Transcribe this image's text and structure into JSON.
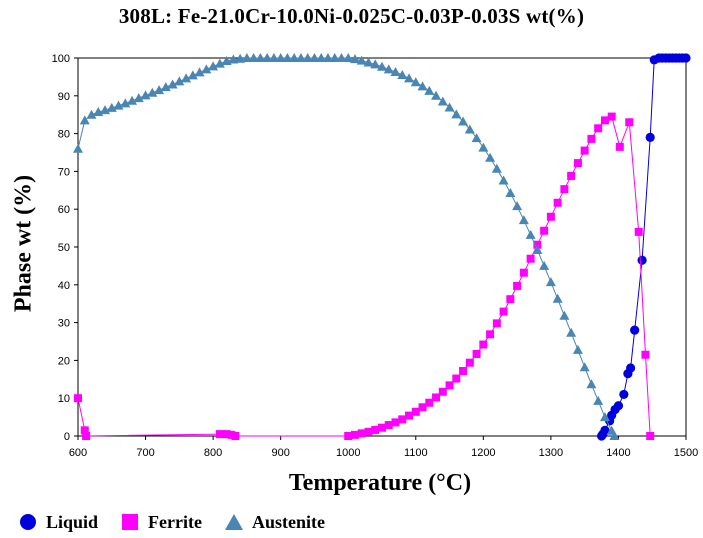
{
  "chart_data": {
    "type": "line",
    "title": "308L: Fe-21.0Cr-10.0Ni-0.025C-0.03P-0.03S wt(%)",
    "xlabel": "Temperature (°C)",
    "ylabel": "Phase wt (%)",
    "xlim": [
      600,
      1500
    ],
    "ylim": [
      0,
      100
    ],
    "x_ticks": [
      "600",
      "700",
      "800",
      "900",
      "1000",
      "1100",
      "1200",
      "1300",
      "1400",
      "1500"
    ],
    "y_ticks": [
      "0",
      "10",
      "20",
      "30",
      "40",
      "50",
      "60",
      "70",
      "80",
      "90",
      "100"
    ],
    "legend_position": "bottom",
    "grid": false,
    "series": [
      {
        "name": "Liquid",
        "color": "#0000dd",
        "marker": "circle",
        "points": [
          [
            1375,
            0
          ],
          [
            1377,
            0.5
          ],
          [
            1380,
            1.5
          ],
          [
            1387,
            4
          ],
          [
            1390,
            5.5
          ],
          [
            1395,
            7
          ],
          [
            1400,
            8
          ],
          [
            1408,
            11
          ],
          [
            1414,
            16.5
          ],
          [
            1418,
            18
          ],
          [
            1424,
            28
          ],
          [
            1435,
            46.5
          ],
          [
            1447,
            79
          ],
          [
            1453,
            99.5
          ],
          [
            1460,
            100
          ],
          [
            1465,
            100
          ],
          [
            1470,
            100
          ],
          [
            1475,
            100
          ],
          [
            1480,
            100
          ],
          [
            1485,
            100
          ],
          [
            1490,
            100
          ],
          [
            1495,
            100
          ],
          [
            1500,
            100
          ]
        ]
      },
      {
        "name": "Ferrite",
        "color": "#ff00ff",
        "marker": "square",
        "points": [
          [
            600,
            10
          ],
          [
            610,
            1.5
          ],
          [
            612,
            0
          ],
          [
            810,
            0.5
          ],
          [
            820,
            0.5
          ],
          [
            827,
            0.3
          ],
          [
            833,
            0
          ],
          [
            1000,
            0
          ],
          [
            1010,
            0.3
          ],
          [
            1020,
            0.7
          ],
          [
            1030,
            1.1
          ],
          [
            1040,
            1.6
          ],
          [
            1050,
            2.2
          ],
          [
            1060,
            2.9
          ],
          [
            1070,
            3.6
          ],
          [
            1080,
            4.4
          ],
          [
            1090,
            5.4
          ],
          [
            1100,
            6.4
          ],
          [
            1110,
            7.6
          ],
          [
            1120,
            8.8
          ],
          [
            1130,
            10.2
          ],
          [
            1140,
            11.7
          ],
          [
            1150,
            13.4
          ],
          [
            1160,
            15.2
          ],
          [
            1170,
            17.2
          ],
          [
            1180,
            19.4
          ],
          [
            1190,
            21.7
          ],
          [
            1200,
            24.2
          ],
          [
            1210,
            26.9
          ],
          [
            1220,
            29.8
          ],
          [
            1230,
            32.9
          ],
          [
            1240,
            36.2
          ],
          [
            1250,
            39.7
          ],
          [
            1260,
            43.2
          ],
          [
            1270,
            46.9
          ],
          [
            1280,
            50.6
          ],
          [
            1290,
            54.3
          ],
          [
            1300,
            58
          ],
          [
            1310,
            61.7
          ],
          [
            1320,
            65.3
          ],
          [
            1330,
            68.8
          ],
          [
            1340,
            72.2
          ],
          [
            1350,
            75.5
          ],
          [
            1360,
            78.6
          ],
          [
            1370,
            81.4
          ],
          [
            1380,
            83.5
          ],
          [
            1390,
            84.5
          ],
          [
            1402,
            76.5
          ],
          [
            1416,
            83
          ],
          [
            1430,
            54
          ],
          [
            1440,
            21.5
          ],
          [
            1447,
            0
          ]
        ]
      },
      {
        "name": "Austenite",
        "color": "#4a86b4",
        "marker": "triangle",
        "points": [
          [
            600,
            76
          ],
          [
            610,
            83.5
          ],
          [
            620,
            85
          ],
          [
            630,
            85.7
          ],
          [
            640,
            86.2
          ],
          [
            650,
            86.8
          ],
          [
            660,
            87.4
          ],
          [
            670,
            88
          ],
          [
            680,
            88.7
          ],
          [
            690,
            89.4
          ],
          [
            700,
            90.1
          ],
          [
            710,
            90.8
          ],
          [
            720,
            91.5
          ],
          [
            730,
            92.3
          ],
          [
            740,
            93
          ],
          [
            750,
            93.8
          ],
          [
            760,
            94.6
          ],
          [
            770,
            95.4
          ],
          [
            780,
            96.2
          ],
          [
            790,
            97
          ],
          [
            800,
            97.8
          ],
          [
            810,
            98.5
          ],
          [
            820,
            99.2
          ],
          [
            830,
            99.6
          ],
          [
            840,
            99.8
          ],
          [
            850,
            100
          ],
          [
            860,
            100
          ],
          [
            870,
            100
          ],
          [
            880,
            100
          ],
          [
            890,
            100
          ],
          [
            900,
            100
          ],
          [
            910,
            100
          ],
          [
            920,
            100
          ],
          [
            930,
            100
          ],
          [
            940,
            100
          ],
          [
            950,
            100
          ],
          [
            960,
            100
          ],
          [
            970,
            100
          ],
          [
            980,
            100
          ],
          [
            990,
            100
          ],
          [
            1000,
            100
          ],
          [
            1010,
            99.7
          ],
          [
            1020,
            99.3
          ],
          [
            1030,
            98.8
          ],
          [
            1040,
            98.3
          ],
          [
            1050,
            97.7
          ],
          [
            1060,
            97
          ],
          [
            1070,
            96.3
          ],
          [
            1080,
            95.5
          ],
          [
            1090,
            94.6
          ],
          [
            1100,
            93.6
          ],
          [
            1110,
            92.5
          ],
          [
            1120,
            91.3
          ],
          [
            1130,
            90
          ],
          [
            1140,
            88.5
          ],
          [
            1150,
            86.9
          ],
          [
            1160,
            85.1
          ],
          [
            1170,
            83.2
          ],
          [
            1180,
            81.1
          ],
          [
            1190,
            78.8
          ],
          [
            1200,
            76.3
          ],
          [
            1210,
            73.6
          ],
          [
            1220,
            70.7
          ],
          [
            1230,
            67.6
          ],
          [
            1240,
            64.3
          ],
          [
            1250,
            60.8
          ],
          [
            1260,
            57.1
          ],
          [
            1270,
            53.2
          ],
          [
            1280,
            49.2
          ],
          [
            1290,
            45
          ],
          [
            1300,
            40.7
          ],
          [
            1310,
            36.3
          ],
          [
            1320,
            31.8
          ],
          [
            1330,
            27.3
          ],
          [
            1340,
            22.8
          ],
          [
            1350,
            18.2
          ],
          [
            1360,
            13.7
          ],
          [
            1370,
            9.3
          ],
          [
            1380,
            5
          ],
          [
            1390,
            1.4
          ],
          [
            1394,
            0
          ]
        ]
      }
    ]
  }
}
